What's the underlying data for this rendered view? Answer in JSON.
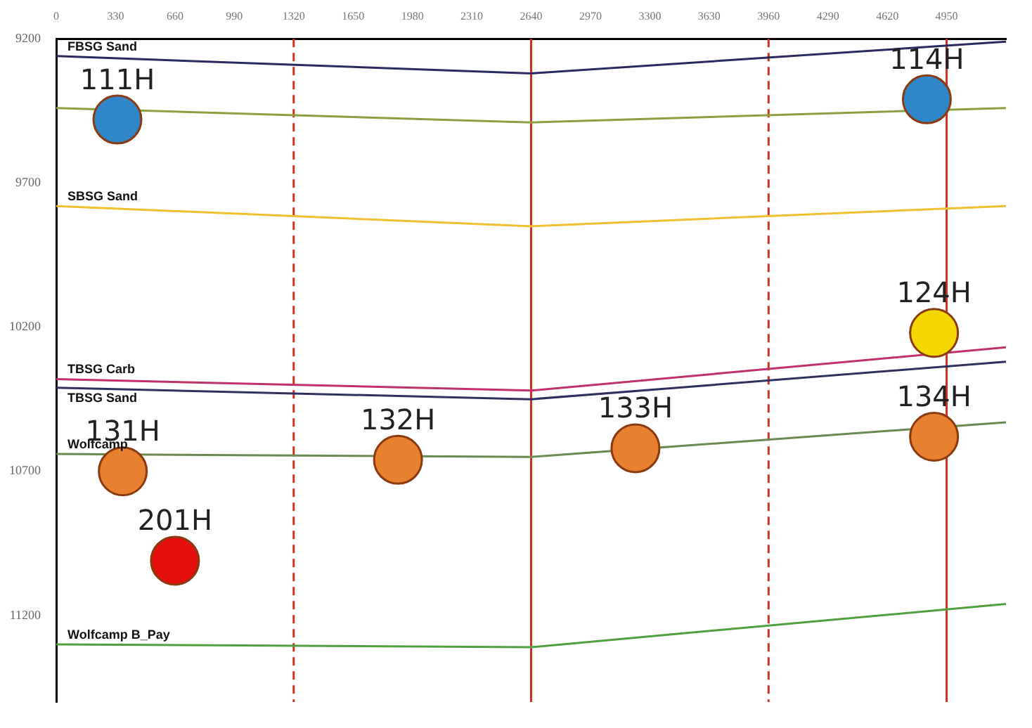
{
  "chart_data": {
    "type": "scatter",
    "ylim": [
      11500,
      9200
    ],
    "yticks": [
      9200,
      9700,
      10200,
      10700,
      11200
    ],
    "xlim": [
      0,
      5280
    ],
    "xticks": [
      0,
      330,
      660,
      990,
      1320,
      1650,
      1980,
      2310,
      2640,
      2970,
      3300,
      3630,
      3960,
      4290,
      4620,
      4950
    ],
    "grid": false,
    "series": [
      {
        "name": "FBSG Sand",
        "type": "line",
        "marker": "none",
        "color": "#2a2a60",
        "x": [
          0,
          2640,
          5280
        ],
        "values": [
          9260,
          9320,
          9210
        ]
      },
      {
        "type": "line",
        "marker": "none",
        "color": "#8aa040",
        "x": [
          0,
          2640,
          5280
        ],
        "values": [
          9440,
          9490,
          9440
        ]
      },
      {
        "name": "SBSG Sand",
        "type": "line",
        "marker": "none",
        "color": "#f0c030",
        "x": [
          0,
          2640,
          5280
        ],
        "values": [
          9780,
          9850,
          9780
        ]
      },
      {
        "name": "TBSG Carb",
        "type": "line",
        "marker": "none",
        "color": "#c0306a",
        "x": [
          0,
          2640,
          5280
        ],
        "values": [
          10380,
          10420,
          10270
        ]
      },
      {
        "name": "TBSG Sand",
        "type": "line",
        "marker": "none",
        "color": "#303060",
        "x": [
          0,
          2640,
          5280
        ],
        "values": [
          10410,
          10450,
          10320
        ]
      },
      {
        "name": "Wolfcamp",
        "type": "line",
        "marker": "none",
        "color": "#6a8a50",
        "x": [
          0,
          2640,
          5280
        ],
        "values": [
          10640,
          10650,
          10530
        ]
      },
      {
        "name": "Wolfcamp B_Pay",
        "type": "line",
        "marker": "none",
        "color": "#50a040",
        "x": [
          0,
          2640,
          5280
        ],
        "values": [
          11300,
          11310,
          11160
        ]
      },
      {
        "name": "111H",
        "marker": "circle",
        "color": "#2f86c8",
        "x": [
          340
        ],
        "values": [
          9480
        ]
      },
      {
        "name": "114H",
        "marker": "circle",
        "color": "#2f86c8",
        "x": [
          4840
        ],
        "values": [
          9410
        ]
      },
      {
        "name": "124H",
        "marker": "circle",
        "color": "#f5d800",
        "x": [
          4880
        ],
        "values": [
          10220
        ]
      },
      {
        "name": "131H",
        "marker": "circle",
        "color": "#e8812f",
        "x": [
          370
        ],
        "values": [
          10700
        ]
      },
      {
        "name": "132H",
        "marker": "circle",
        "color": "#e8812f",
        "x": [
          1900
        ],
        "values": [
          10660
        ]
      },
      {
        "name": "133H",
        "marker": "circle",
        "color": "#e8812f",
        "x": [
          3220
        ],
        "values": [
          10620
        ]
      },
      {
        "name": "134H",
        "marker": "circle",
        "color": "#e8812f",
        "x": [
          4880
        ],
        "values": [
          10580
        ]
      },
      {
        "name": "201H",
        "marker": "circle",
        "color": "#e5100e",
        "x": [
          660
        ],
        "values": [
          11010
        ]
      }
    ],
    "ref_lines": [
      {
        "axis": "x",
        "value": 1320,
        "color": "#d03020",
        "line_style": "dashed"
      },
      {
        "axis": "x",
        "value": 2640,
        "color": "#d03020",
        "line_style": "solid"
      },
      {
        "axis": "x",
        "value": 3960,
        "color": "#d03020",
        "line_style": "dashed"
      },
      {
        "axis": "x",
        "value": 4950,
        "color": "#d03020",
        "line_style": "solid"
      }
    ]
  }
}
